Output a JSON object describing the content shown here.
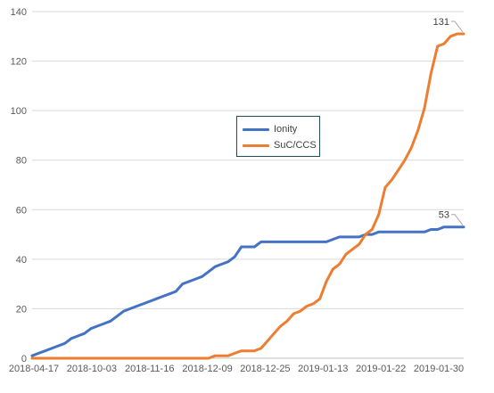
{
  "chart_data": {
    "type": "line",
    "title": "",
    "xlabel": "",
    "ylabel": "",
    "ylim": [
      0,
      140
    ],
    "y_ticks": [
      0,
      20,
      40,
      60,
      80,
      100,
      120,
      140
    ],
    "grid": "horizontal",
    "legend_position": "center",
    "x_tick_labels": [
      "2018-04-17",
      "2018-10-03",
      "2018-11-16",
      "2018-12-09",
      "2018-12-25",
      "2019-01-13",
      "2019-01-22",
      "2019-01-30"
    ],
    "series": [
      {
        "name": "Ionity",
        "color": "#4472c4",
        "values": [
          1,
          2,
          3,
          4,
          5,
          6,
          8,
          9,
          10,
          12,
          13,
          14,
          15,
          17,
          19,
          20,
          21,
          22,
          23,
          24,
          25,
          26,
          27,
          30,
          31,
          32,
          33,
          35,
          37,
          38,
          39,
          41,
          45,
          45,
          45,
          47,
          47,
          47,
          47,
          47,
          47,
          47,
          47,
          47,
          47,
          47,
          48,
          49,
          49,
          49,
          49,
          50,
          50,
          51,
          51,
          51,
          51,
          51,
          51,
          51,
          51,
          52,
          52,
          53,
          53,
          53,
          53
        ],
        "end_label": "53"
      },
      {
        "name": "SuC/CCS",
        "color": "#ed7d31",
        "values": [
          0,
          0,
          0,
          0,
          0,
          0,
          0,
          0,
          0,
          0,
          0,
          0,
          0,
          0,
          0,
          0,
          0,
          0,
          0,
          0,
          0,
          0,
          0,
          0,
          0,
          0,
          0,
          0,
          1,
          1,
          1,
          2,
          3,
          3,
          3,
          4,
          7,
          10,
          13,
          15,
          18,
          19,
          21,
          22,
          24,
          31,
          36,
          38,
          42,
          44,
          46,
          50,
          52,
          58,
          69,
          72,
          76,
          80,
          85,
          92,
          101,
          115,
          126,
          127,
          130,
          131,
          131
        ],
        "end_label": "131"
      }
    ]
  }
}
